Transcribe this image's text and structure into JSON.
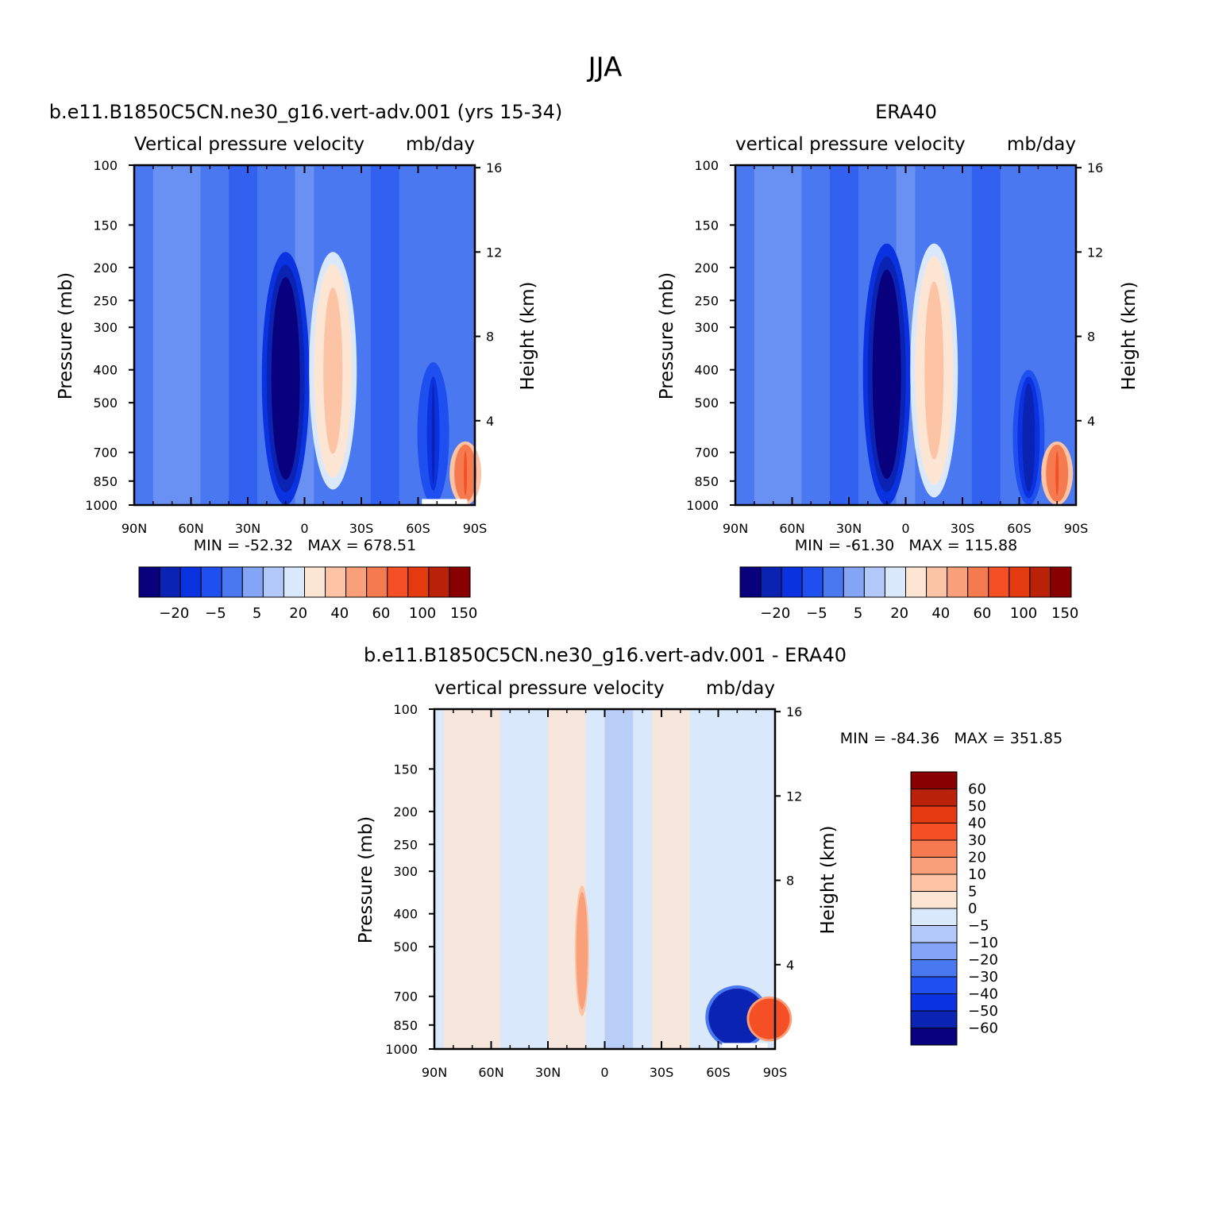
{
  "page": {
    "title": "JJA"
  },
  "colors": {
    "model_palette": [
      "#08007d",
      "#0a23b3",
      "#0b32e0",
      "#1f4fee",
      "#4a78f0",
      "#84a5f5",
      "#b2c8f8",
      "#d9e8fb",
      "#fde5d4",
      "#fcc3a4",
      "#f9a07a",
      "#f57a4f",
      "#f54f25",
      "#e33a10",
      "#b92208",
      "#880000"
    ],
    "diff_palette": [
      "#08007d",
      "#0a23b3",
      "#0b32e0",
      "#1f4fee",
      "#4a78f0",
      "#84a5f5",
      "#b2c8f8",
      "#d9e8fb",
      "#fde5d4",
      "#fcc3a4",
      "#f9a07a",
      "#f57a4f",
      "#f54f25",
      "#e33a10",
      "#b92208",
      "#880000"
    ]
  },
  "chart_data": [
    {
      "type": "heatmap",
      "title": "b.e11.B1850C5CN.ne30_g16.vert-adv.001 (yrs 15-34)",
      "subtitle_left": "Vertical pressure velocity",
      "subtitle_right": "mb/day",
      "ylabel": "Pressure (mb)",
      "ylabel_right": "Height (km)",
      "x_ticks": [
        "90N",
        "60N",
        "30N",
        "0",
        "30S",
        "60S",
        "90S"
      ],
      "y_ticks": [
        "100",
        "150",
        "200",
        "250",
        "300",
        "400",
        "500",
        "700",
        "850",
        "1000"
      ],
      "y2_ticks": [
        "16",
        "12",
        "8",
        "4"
      ],
      "stats": "MIN = -52.32   MAX = 678.51",
      "colorbar_labels": [
        "-20",
        "-5",
        "5",
        "20",
        "40",
        "60",
        "100",
        "150"
      ],
      "features": [
        {
          "lat": -10,
          "p_top": 180,
          "p_bot": 1000,
          "value": -40
        },
        {
          "lat": 15,
          "p_top": 180,
          "p_bot": 900,
          "value": 20
        },
        {
          "lat": 68,
          "p_top": 380,
          "p_bot": 1000,
          "value": -25
        },
        {
          "lat": 85,
          "p_top": 650,
          "p_bot": 1000,
          "value": 60
        }
      ]
    },
    {
      "type": "heatmap",
      "title": "ERA40",
      "subtitle_left": "vertical pressure velocity",
      "subtitle_right": "mb/day",
      "ylabel": "Pressure (mb)",
      "ylabel_right": "Height (km)",
      "x_ticks": [
        "90N",
        "60N",
        "30N",
        "0",
        "30S",
        "60S",
        "90S"
      ],
      "y_ticks": [
        "100",
        "150",
        "200",
        "250",
        "300",
        "400",
        "500",
        "700",
        "850",
        "1000"
      ],
      "y2_ticks": [
        "16",
        "12",
        "8",
        "4"
      ],
      "stats": "MIN = -61.30   MAX = 115.88",
      "colorbar_labels": [
        "-20",
        "-5",
        "5",
        "20",
        "40",
        "60",
        "100",
        "150"
      ],
      "features": [
        {
          "lat": -10,
          "p_top": 170,
          "p_bot": 1000,
          "value": -45
        },
        {
          "lat": 15,
          "p_top": 170,
          "p_bot": 950,
          "value": 20
        },
        {
          "lat": 65,
          "p_top": 400,
          "p_bot": 1000,
          "value": -30
        },
        {
          "lat": 80,
          "p_top": 650,
          "p_bot": 1000,
          "value": 60
        }
      ]
    },
    {
      "type": "heatmap",
      "title": "b.e11.B1850C5CN.ne30_g16.vert-adv.001 - ERA40",
      "subtitle_left": "vertical pressure velocity",
      "subtitle_right": "mb/day",
      "ylabel": "Pressure (mb)",
      "ylabel_right": "Height (km)",
      "x_ticks": [
        "90N",
        "60N",
        "30N",
        "0",
        "30S",
        "60S",
        "90S"
      ],
      "y_ticks": [
        "100",
        "150",
        "200",
        "250",
        "300",
        "400",
        "500",
        "700",
        "850",
        "1000"
      ],
      "y2_ticks": [
        "16",
        "12",
        "8",
        "4"
      ],
      "stats": "MIN = -84.36   MAX = 351.85",
      "colorbar_labels": [
        "60",
        "50",
        "40",
        "30",
        "20",
        "10",
        "5",
        "0",
        "-5",
        "-10",
        "-20",
        "-30",
        "-40",
        "-50",
        "-60"
      ],
      "features": [
        {
          "lat": -12,
          "p_top": 330,
          "p_bot": 800,
          "value": 15
        },
        {
          "lat": 70,
          "p_top": 650,
          "p_bot": 1000,
          "value": -50
        },
        {
          "lat": 87,
          "p_top": 700,
          "p_bot": 950,
          "value": 40
        }
      ]
    }
  ]
}
